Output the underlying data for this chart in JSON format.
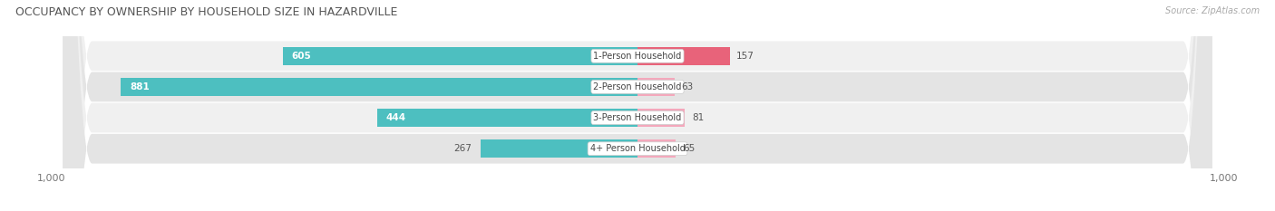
{
  "title": "OCCUPANCY BY OWNERSHIP BY HOUSEHOLD SIZE IN HAZARDVILLE",
  "source": "Source: ZipAtlas.com",
  "categories": [
    "1-Person Household",
    "2-Person Household",
    "3-Person Household",
    "4+ Person Household"
  ],
  "owner_values": [
    605,
    881,
    444,
    267
  ],
  "renter_values": [
    157,
    63,
    81,
    65
  ],
  "max_axis": 1000,
  "owner_color": "#4dbfc0",
  "renter_color_1": "#e8637a",
  "renter_color_2": "#f4a8bc",
  "label_bg_color": "#ffffff",
  "row_bg_colors": [
    "#f0f0f0",
    "#e4e4e4",
    "#f0f0f0",
    "#e4e4e4"
  ],
  "title_fontsize": 9,
  "source_fontsize": 7,
  "tick_fontsize": 8,
  "bar_label_fontsize": 7.5,
  "category_label_fontsize": 7,
  "legend_fontsize": 7.5,
  "axis_label": "1,000",
  "inside_label_threshold": 300
}
